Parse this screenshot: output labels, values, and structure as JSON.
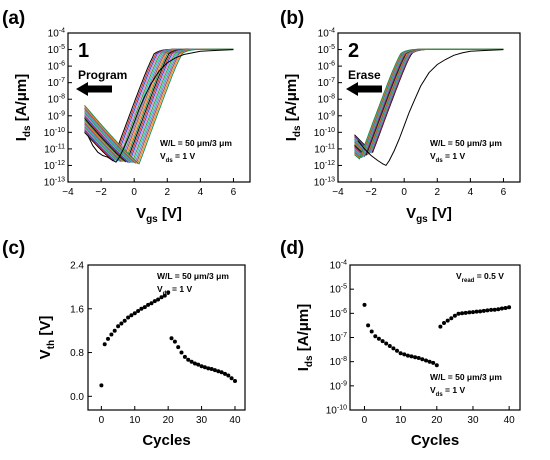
{
  "chart_data": [
    {
      "id": "a",
      "type": "line",
      "panel_label": "(a)",
      "ylabel": "I",
      "ylabel_sub": "ds",
      "ylabel_unit": "[A/μm]",
      "xlabel": "V",
      "xlabel_sub": "gs",
      "xlabel_unit": "[V]",
      "xlim": [
        -4,
        7
      ],
      "xticks": [
        -4,
        -2,
        0,
        2,
        4,
        6
      ],
      "ylim_log": [
        -13,
        -4
      ],
      "yticks_log": [
        -13,
        -12,
        -11,
        -10,
        -9,
        -8,
        -7,
        -6,
        -5,
        -4
      ],
      "grid": false,
      "step_number": "1",
      "arrow_label": "Program",
      "arrow_direction": "left",
      "annotation_lines": [
        {
          "main": "W/L = 50 μm/3 μm",
          "sub": ""
        },
        {
          "main": "V",
          "sub": "ds",
          "tail": " = 1 V"
        }
      ],
      "initial_curve": {
        "color": "#000000",
        "vmin": -1.1,
        "ymin": -11.8,
        "x": [
          -2.8,
          -2.5,
          -2.2,
          -1.9,
          -1.6,
          -1.3,
          -1.1,
          -0.9,
          -0.6,
          -0.3,
          0,
          0.3,
          0.6,
          1,
          1.5,
          2,
          2.5,
          3,
          3.5,
          4,
          5,
          6
        ],
        "y_log": [
          -10.2,
          -10.8,
          -11.2,
          -11.4,
          -11.5,
          -11.7,
          -11.8,
          -11.5,
          -10.9,
          -10.2,
          -9.4,
          -8.6,
          -7.9,
          -7.1,
          -6.3,
          -5.8,
          -5.5,
          -5.3,
          -5.2,
          -5.1,
          -5.05,
          -5.0
        ]
      },
      "cycle_curves": {
        "count": 20,
        "vmin_range": [
          -1.3,
          0.3
        ],
        "ymin_range": [
          -11.7,
          -11.9
        ],
        "colors": [
          "#000000",
          "#d62728",
          "#1f4fd8",
          "#e377c2",
          "#2ca02c",
          "#17becf",
          "#9467bd",
          "#8c564b",
          "#ff7f0e",
          "#1a8f5a"
        ]
      }
    },
    {
      "id": "b",
      "type": "line",
      "panel_label": "(b)",
      "ylabel": "I",
      "ylabel_sub": "ds",
      "ylabel_unit": "[A/μm]",
      "xlabel": "V",
      "xlabel_sub": "gs",
      "xlabel_unit": "[V]",
      "xlim": [
        -4,
        7
      ],
      "xticks": [
        -4,
        -2,
        0,
        2,
        4,
        6
      ],
      "ylim_log": [
        -13,
        -4
      ],
      "yticks_log": [
        -13,
        -12,
        -11,
        -10,
        -9,
        -8,
        -7,
        -6,
        -5,
        -4
      ],
      "grid": false,
      "step_number": "2",
      "arrow_label": "Erase",
      "arrow_direction": "left",
      "annotation_lines": [
        {
          "main": "W/L = 50 μm/3 μm",
          "sub": ""
        },
        {
          "main": "V",
          "sub": "ds",
          "tail": " = 1 V"
        }
      ],
      "initial_curve": {
        "color": "#000000",
        "vmin": -1.1,
        "ymin": -12.0,
        "x": [
          -2.8,
          -2.4,
          -2.0,
          -1.6,
          -1.3,
          -1.1,
          -0.9,
          -0.6,
          -0.3,
          0,
          0.3,
          0.6,
          1,
          1.5,
          2,
          2.5,
          3,
          3.5,
          4,
          5,
          6
        ],
        "y_log": [
          -10.5,
          -11.0,
          -11.4,
          -11.7,
          -11.9,
          -12.0,
          -11.7,
          -11.1,
          -10.4,
          -9.6,
          -8.8,
          -8.1,
          -7.2,
          -6.4,
          -5.9,
          -5.6,
          -5.35,
          -5.2,
          -5.1,
          -5.05,
          -5.0
        ]
      },
      "cycle_curves": {
        "count": 20,
        "vmin_range": [
          -1.9,
          -2.7
        ],
        "ymin_range": [
          -11.2,
          -11.6
        ],
        "colors": [
          "#000000",
          "#d62728",
          "#1f4fd8",
          "#e377c2",
          "#2ca02c",
          "#17becf",
          "#9467bd",
          "#8c564b",
          "#ff7f0e",
          "#1a8f5a"
        ]
      }
    },
    {
      "id": "c",
      "type": "scatter",
      "panel_label": "(c)",
      "ylabel": "V",
      "ylabel_sub": "th",
      "ylabel_unit": "[V]",
      "xlabel": "Cycles",
      "xlim": [
        -4,
        43
      ],
      "xticks": [
        0,
        10,
        20,
        30,
        40
      ],
      "ylim": [
        -0.25,
        2.4
      ],
      "yticks": [
        "0.0",
        "0.8",
        "1.6",
        "2.4"
      ],
      "grid": false,
      "annotation_lines": [
        {
          "main": "W/L = 50 μm/3 μm",
          "sub": ""
        },
        {
          "main": "V",
          "sub": "ds",
          "tail": " = 1 V"
        }
      ],
      "x": [
        0,
        1,
        2,
        3,
        4,
        5,
        6,
        7,
        8,
        9,
        10,
        11,
        12,
        13,
        14,
        15,
        16,
        17,
        18,
        19,
        20,
        21,
        22,
        23,
        24,
        25,
        26,
        27,
        28,
        29,
        30,
        31,
        32,
        33,
        34,
        35,
        36,
        37,
        38,
        39,
        40
      ],
      "y": [
        0.2,
        0.95,
        1.05,
        1.13,
        1.2,
        1.28,
        1.33,
        1.38,
        1.44,
        1.48,
        1.52,
        1.56,
        1.6,
        1.63,
        1.67,
        1.7,
        1.74,
        1.77,
        1.81,
        1.84,
        1.9,
        1.06,
        1.0,
        0.9,
        0.8,
        0.72,
        0.67,
        0.63,
        0.6,
        0.58,
        0.55,
        0.53,
        0.51,
        0.5,
        0.48,
        0.46,
        0.44,
        0.41,
        0.38,
        0.33,
        0.28
      ]
    },
    {
      "id": "d",
      "type": "scatter",
      "panel_label": "(d)",
      "ylabel": "I",
      "ylabel_sub": "ds",
      "ylabel_unit": "[A/μm]",
      "xlabel": "Cycles",
      "xlim": [
        -4,
        43
      ],
      "xticks": [
        0,
        10,
        20,
        30,
        40
      ],
      "ylim_log": [
        -10,
        -4
      ],
      "yticks_log": [
        -10,
        -9,
        -8,
        -7,
        -6,
        -5,
        -4
      ],
      "grid": false,
      "annotation_top": {
        "main": "V",
        "sub": "read",
        "tail": " = 0.5 V"
      },
      "annotation_lines": [
        {
          "main": "W/L = 50 μm/3 μm",
          "sub": ""
        },
        {
          "main": "V",
          "sub": "ds",
          "tail": " = 1 V"
        }
      ],
      "x": [
        0,
        1,
        2,
        3,
        4,
        5,
        6,
        7,
        8,
        9,
        10,
        11,
        12,
        13,
        14,
        15,
        16,
        17,
        18,
        19,
        20,
        21,
        22,
        23,
        24,
        25,
        26,
        27,
        28,
        29,
        30,
        31,
        32,
        33,
        34,
        35,
        36,
        37,
        38,
        39,
        40
      ],
      "y_log": [
        -5.65,
        -6.5,
        -6.75,
        -6.95,
        -7.05,
        -7.15,
        -7.25,
        -7.35,
        -7.45,
        -7.55,
        -7.65,
        -7.7,
        -7.75,
        -7.78,
        -7.82,
        -7.85,
        -7.9,
        -7.95,
        -8.0,
        -8.05,
        -8.15,
        -6.55,
        -6.4,
        -6.3,
        -6.2,
        -6.1,
        -6.02,
        -6.0,
        -5.98,
        -5.96,
        -5.95,
        -5.93,
        -5.92,
        -5.9,
        -5.88,
        -5.86,
        -5.85,
        -5.83,
        -5.8,
        -5.78,
        -5.75
      ]
    }
  ]
}
